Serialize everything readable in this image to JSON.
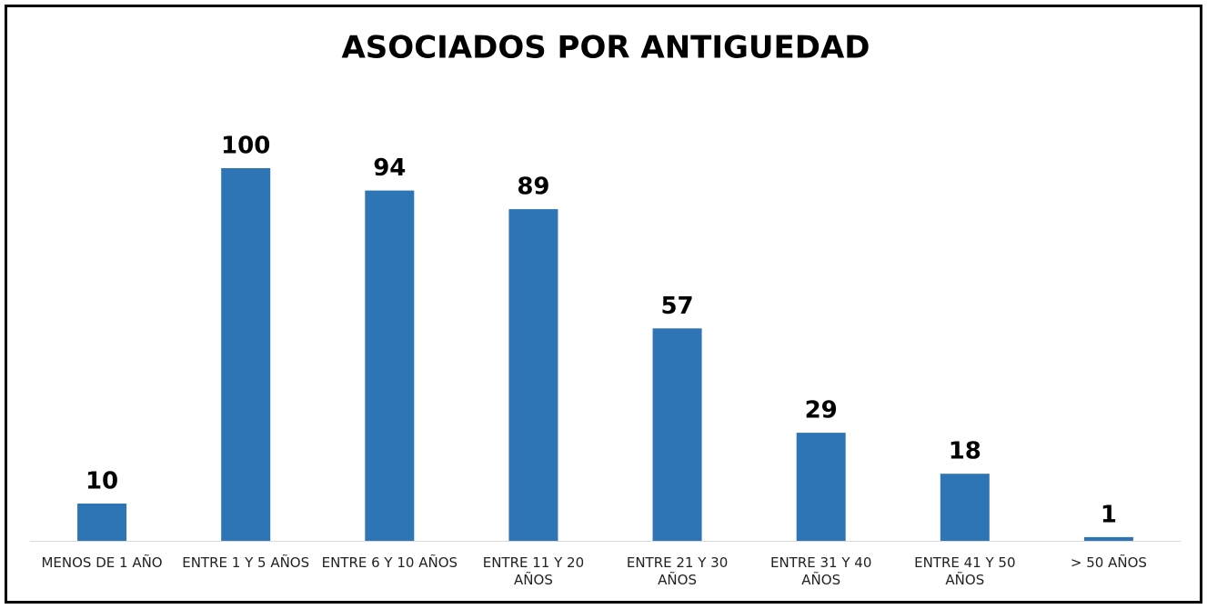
{
  "chart_data": {
    "type": "bar",
    "title": "ASOCIADOS POR ANTIGUEDAD",
    "categories": [
      "MENOS DE 1 AÑO",
      "ENTRE 1 Y 5 AÑOS",
      "ENTRE 6 Y 10 AÑOS",
      "ENTRE 11 Y 20 AÑOS",
      "ENTRE 21 Y 30 AÑOS",
      "ENTRE 31 Y 40 AÑOS",
      "ENTRE 41 Y 50 AÑOS",
      "> 50 AÑOS"
    ],
    "values": [
      10,
      100,
      94,
      89,
      57,
      29,
      18,
      1
    ],
    "color": "#2e75b6"
  }
}
